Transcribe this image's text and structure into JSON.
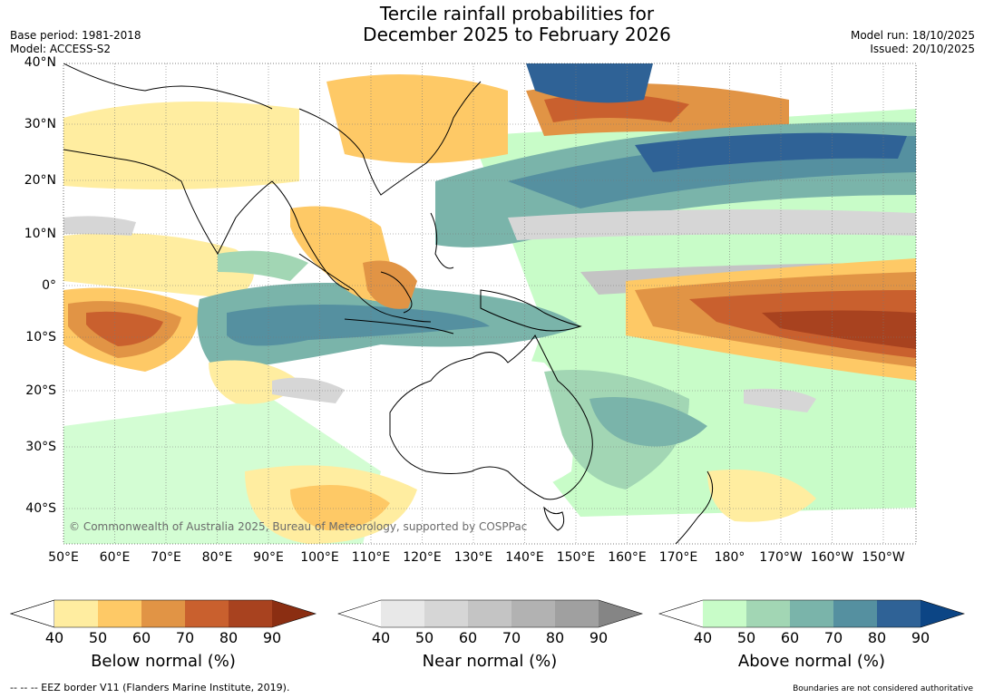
{
  "title_line1": "Tercile rainfall probabilities for",
  "title_line2": "December 2025 to February 2026",
  "base_period": "Base period: 1981-2018",
  "model": "Model: ACCESS-S2",
  "model_run": "Model run: 18/10/2025",
  "issued": "Issued: 20/10/2025",
  "lat_labels": [
    "40°N",
    "30°N",
    "20°N",
    "10°N",
    "0°",
    "10°S",
    "20°S",
    "30°S",
    "40°S"
  ],
  "lon_labels": [
    "50°E",
    "60°E",
    "70°E",
    "80°E",
    "90°E",
    "100°E",
    "110°E",
    "120°E",
    "130°E",
    "140°E",
    "150°E",
    "160°E",
    "170°E",
    "180°",
    "170°W",
    "160°W",
    "150°W"
  ],
  "credit": "© Commonwealth of Australia 2025, Bureau of Meteorology, supported by COSPPac",
  "colorbars": [
    {
      "title": "Below normal (%)",
      "ticks": [
        "40",
        "50",
        "60",
        "70",
        "80",
        "90"
      ],
      "colors": [
        "#ffeda0",
        "#fec966",
        "#e19445",
        "#c9602e",
        "#a8421f",
        "#8b2e12"
      ]
    },
    {
      "title": "Near normal (%)",
      "ticks": [
        "40",
        "50",
        "60",
        "70",
        "80",
        "90"
      ],
      "colors": [
        "#e8e8e8",
        "#d6d6d6",
        "#c4c4c4",
        "#b2b2b2",
        "#a0a0a0",
        "#858585"
      ]
    },
    {
      "title": "Above normal (%)",
      "ticks": [
        "40",
        "50",
        "60",
        "70",
        "80",
        "90"
      ],
      "colors": [
        "#c8fcc8",
        "#a2d6b4",
        "#7ab4aa",
        "#5590a0",
        "#2f6296",
        "#0c4585"
      ]
    }
  ],
  "eez_note": "--  --  -- EEZ border V11 (Flanders Marine Institute, 2019).",
  "boundaries_note": "Boundaries are not considered authoritative"
}
